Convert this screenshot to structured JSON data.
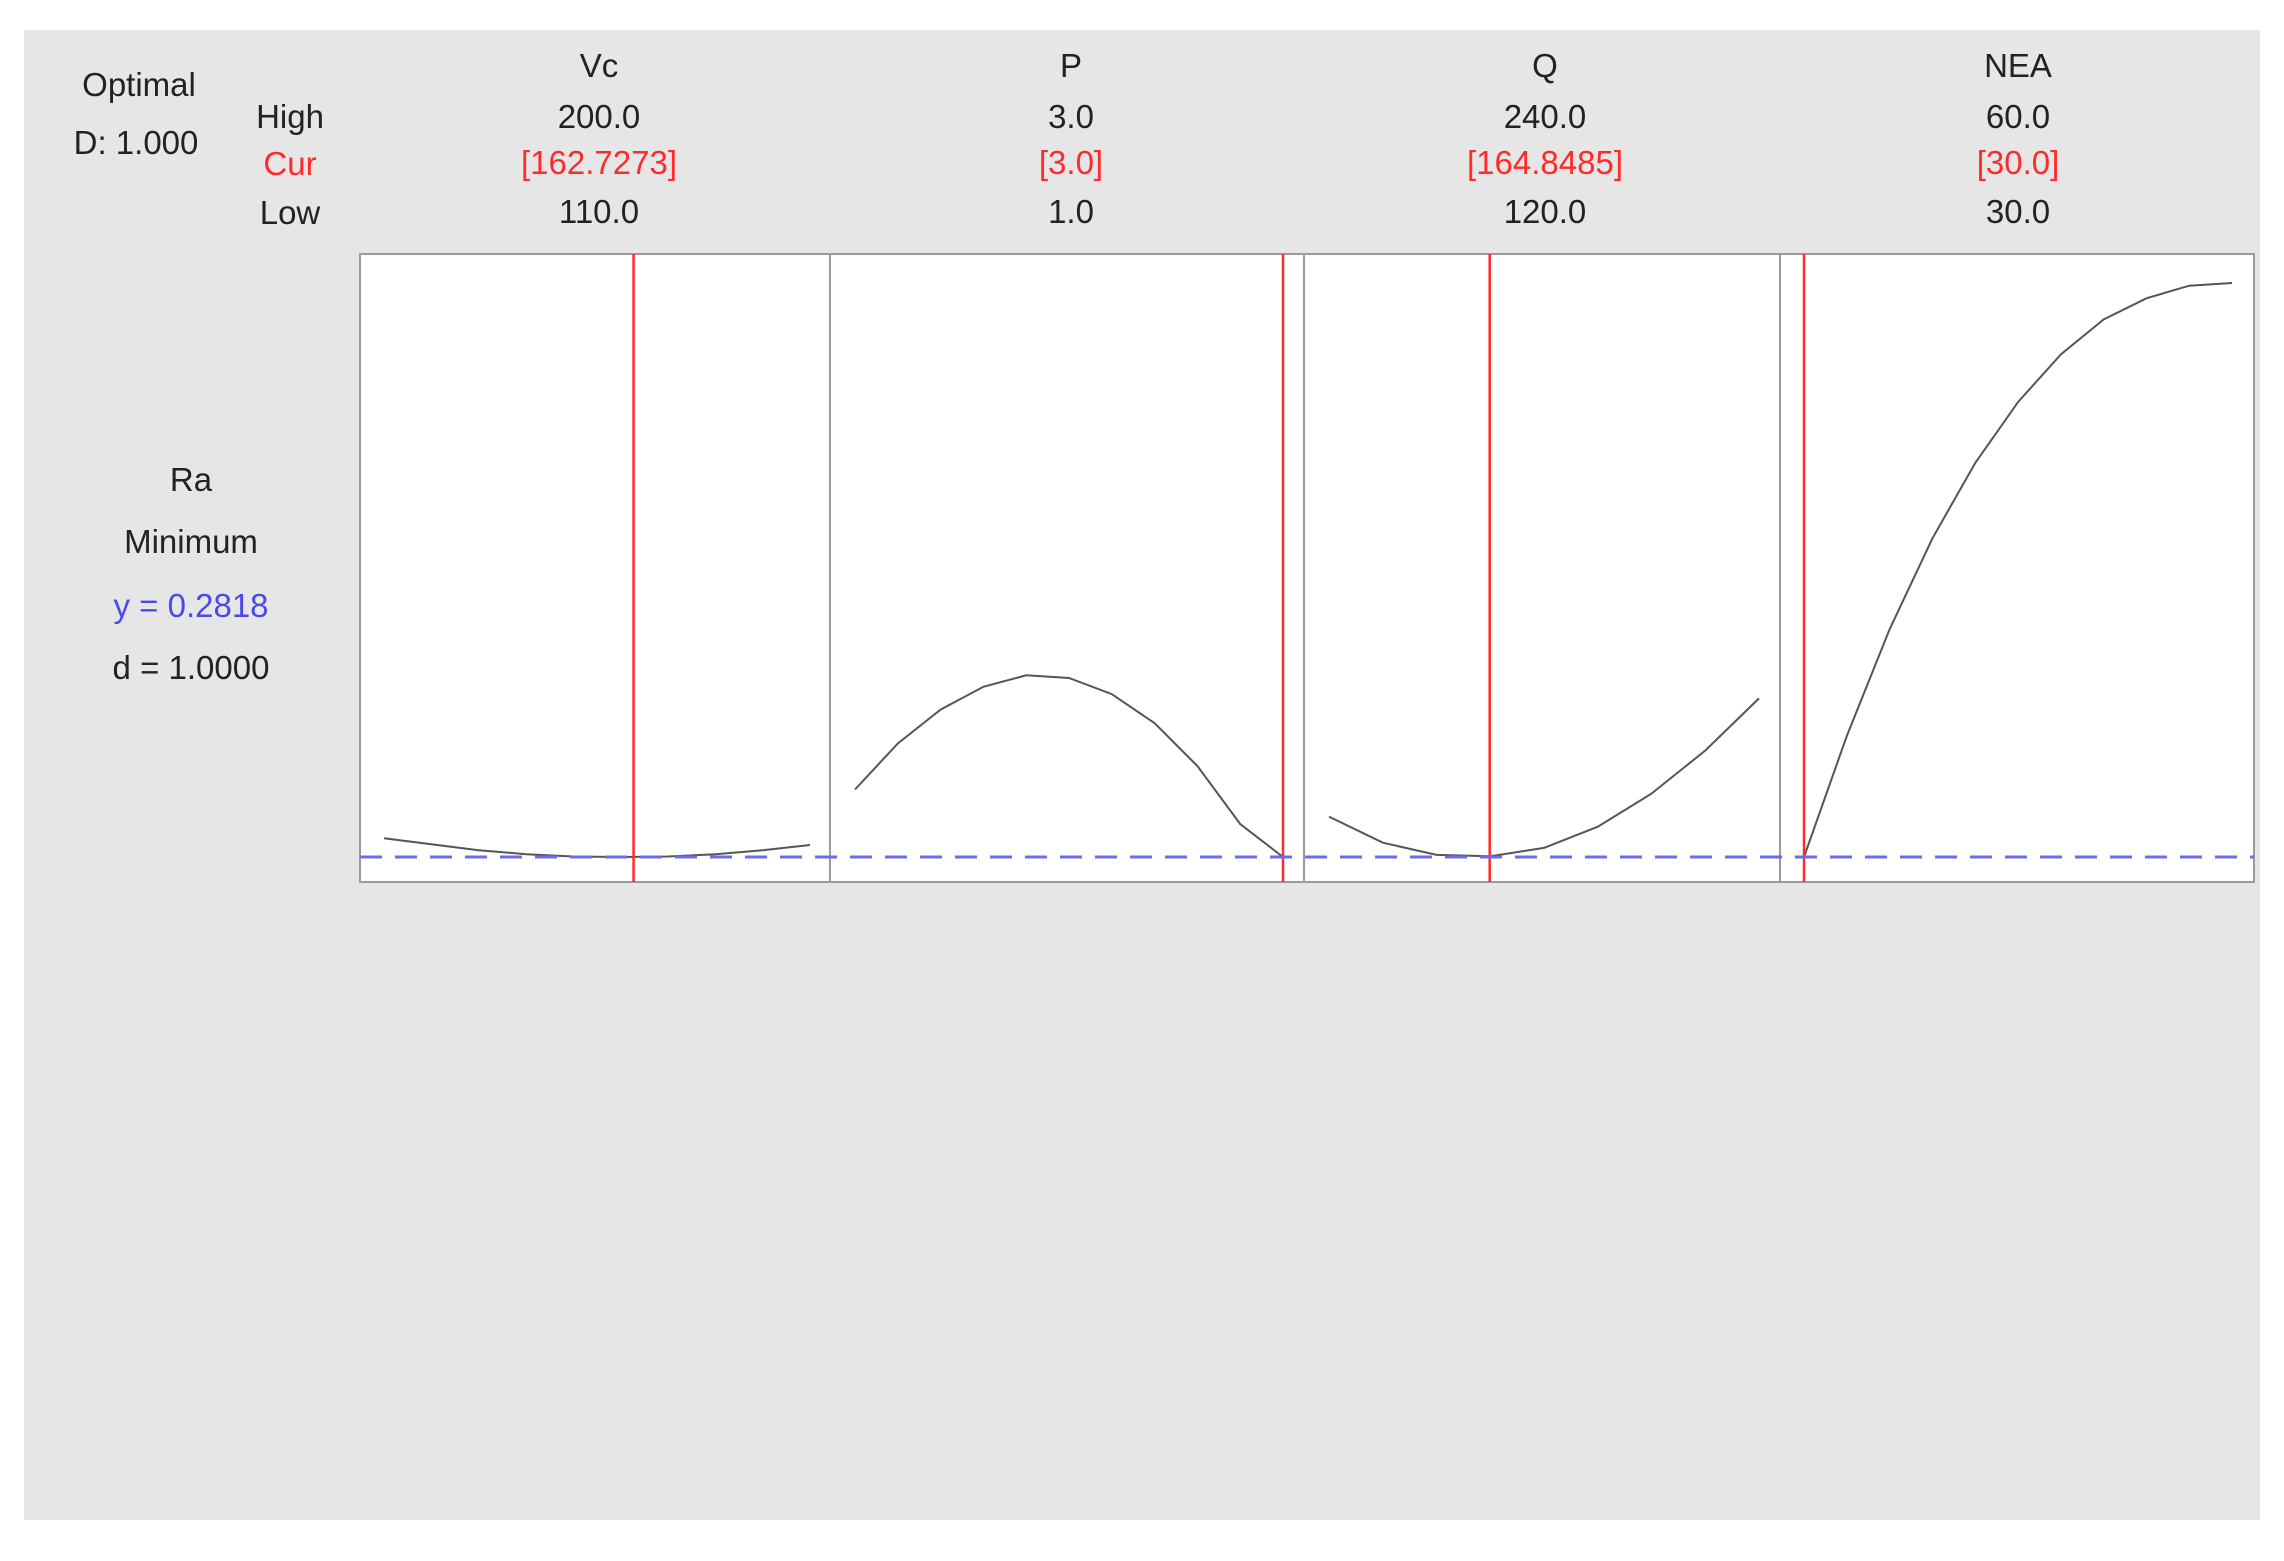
{
  "header": {
    "optimal_label": "Optimal",
    "d_label": "D: 1.000",
    "row_high": "High",
    "row_cur": "Cur",
    "row_low": "Low"
  },
  "factors": [
    {
      "name": "Vc",
      "high": "200.0",
      "cur": "[162.7273]",
      "low": "110.0"
    },
    {
      "name": "P",
      "high": "3.0",
      "cur": "[3.0]",
      "low": "1.0"
    },
    {
      "name": "Q",
      "high": "240.0",
      "cur": "[164.8485]",
      "low": "120.0"
    },
    {
      "name": "NEA",
      "high": "60.0",
      "cur": "[30.0]",
      "low": "30.0"
    }
  ],
  "response": {
    "name": "Ra",
    "goal": "Minimum",
    "y_text": "y = 0.2818",
    "d_text": "d = 1.0000"
  },
  "colors": {
    "background": "#e6e6e6",
    "current_line": "#ff2a2a",
    "target_line": "#6b6bf0",
    "curve": "#555555",
    "cur_text": "#ff2a2a",
    "y_text": "#4a4ae6"
  },
  "chart_data": {
    "type": "line",
    "y_target": 0.2818,
    "panels": [
      {
        "factor": "Vc",
        "xlim": [
          110.0,
          200.0
        ],
        "current": 162.7273,
        "curve": {
          "x": [
            110.0,
            120.0,
            130.0,
            140.0,
            150.0,
            160.0,
            170.0,
            180.0,
            190.0,
            200.0
          ],
          "y": [
            0.365,
            0.338,
            0.312,
            0.294,
            0.284,
            0.282,
            0.284,
            0.294,
            0.312,
            0.335
          ]
        }
      },
      {
        "factor": "P",
        "xlim": [
          1.0,
          3.0
        ],
        "current": 3.0,
        "curve": {
          "x": [
            1.0,
            1.2,
            1.4,
            1.6,
            1.8,
            2.0,
            2.2,
            2.4,
            2.6,
            2.8,
            3.0
          ],
          "y": [
            0.581,
            0.785,
            0.935,
            1.036,
            1.087,
            1.075,
            1.004,
            0.875,
            0.685,
            0.428,
            0.282
          ]
        }
      },
      {
        "factor": "Q",
        "xlim": [
          120.0,
          240.0
        ],
        "current": 164.8485,
        "curve": {
          "x": [
            120.0,
            135.0,
            150.0,
            165.0,
            180.0,
            195.0,
            210.0,
            225.0,
            240.0
          ],
          "y": [
            0.461,
            0.345,
            0.291,
            0.285,
            0.322,
            0.416,
            0.563,
            0.754,
            0.985
          ]
        }
      },
      {
        "factor": "NEA",
        "xlim": [
          30.0,
          60.0
        ],
        "current": 30.0,
        "curve": {
          "x": [
            30.0,
            33.0,
            36.0,
            39.0,
            42.0,
            45.0,
            48.0,
            51.0,
            54.0,
            57.0,
            60.0
          ],
          "y": [
            0.282,
            0.818,
            1.291,
            1.694,
            2.028,
            2.298,
            2.509,
            2.664,
            2.758,
            2.814,
            2.826
          ]
        }
      }
    ]
  }
}
